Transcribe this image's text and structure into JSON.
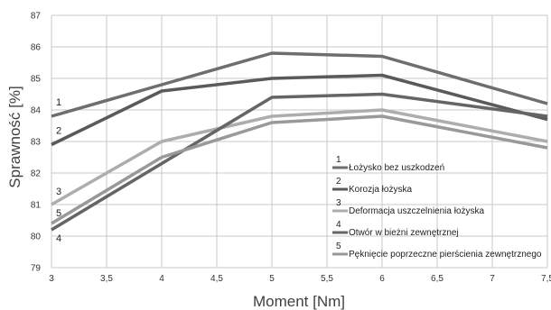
{
  "chart_data": {
    "type": "line",
    "xlabel": "Moment [Nm]",
    "ylabel": "Sprawność [%]",
    "xlim": [
      3,
      7.5
    ],
    "ylim": [
      79,
      87
    ],
    "x_ticks": [
      "3",
      "3,5",
      "4",
      "4,5",
      "5",
      "5,5",
      "6",
      "6,5",
      "7",
      "7,5"
    ],
    "y_ticks": [
      "79",
      "80",
      "81",
      "82",
      "83",
      "84",
      "85",
      "86",
      "87"
    ],
    "grid": true,
    "legend_position": "bottom-right",
    "x": [
      3,
      4,
      5,
      6,
      7.5
    ],
    "series": [
      {
        "tag": "1",
        "name": "Łożysko bez uszkodzeń",
        "color": "#6e6e6e",
        "values": [
          83.8,
          84.8,
          85.8,
          85.7,
          84.2
        ]
      },
      {
        "tag": "2",
        "name": "Korozja łożyska",
        "color": "#5a5a5a",
        "values": [
          82.9,
          84.6,
          85.0,
          85.1,
          83.7
        ]
      },
      {
        "tag": "3",
        "name": "Deformacja uszczelnienia łożyska",
        "color": "#adadad",
        "values": [
          81.0,
          83.0,
          83.8,
          84.0,
          83.0
        ]
      },
      {
        "tag": "4",
        "name": "Otwór w bieżni zewnętrznej",
        "color": "#656565",
        "values": [
          80.2,
          82.3,
          84.4,
          84.5,
          83.8
        ]
      },
      {
        "tag": "5",
        "name": "Pęknięcie poprzeczne pierścienia zewnętrznego",
        "color": "#999999",
        "values": [
          80.4,
          82.5,
          83.6,
          83.8,
          82.8
        ]
      }
    ]
  }
}
